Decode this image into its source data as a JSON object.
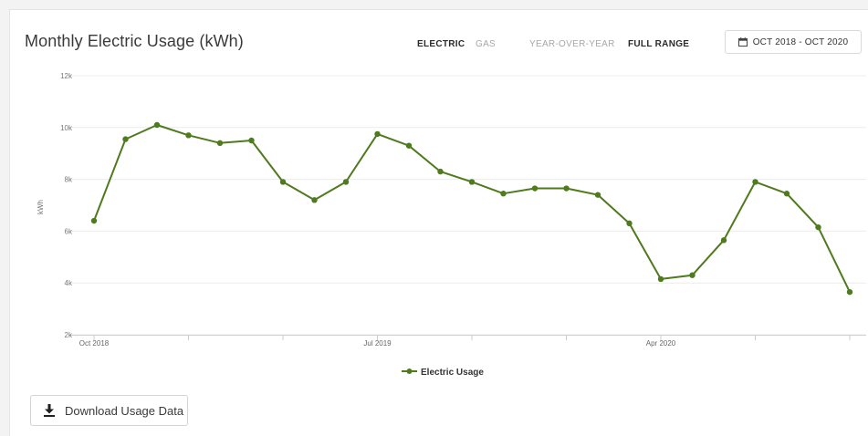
{
  "header": {
    "title": "Monthly Electric Usage (kWh)",
    "fuel_tabs": [
      {
        "label": "ELECTRIC",
        "active": true
      },
      {
        "label": "GAS",
        "active": false
      }
    ],
    "range_tabs": [
      {
        "label": "YEAR-OVER-YEAR",
        "active": false
      },
      {
        "label": "FULL RANGE",
        "active": true
      }
    ],
    "date_range": "OCT 2018 - OCT 2020",
    "date_icon": "calendar-icon"
  },
  "footer": {
    "download_label": "Download Usage Data",
    "download_icon": "download-icon"
  },
  "chart_data": {
    "type": "line",
    "title": "Monthly Electric Usage (kWh)",
    "xlabel": "",
    "ylabel": "kWh",
    "ylim": [
      2000,
      12000
    ],
    "yticks": [
      2000,
      4000,
      6000,
      8000,
      10000,
      12000
    ],
    "ytick_labels": [
      "2k",
      "4k",
      "6k",
      "8k",
      "10k",
      "12k"
    ],
    "xtick_labels": [
      {
        "index": 0,
        "label": "Oct 2018"
      },
      {
        "index": 9,
        "label": "Jul 2019"
      },
      {
        "index": 18,
        "label": "Apr 2020"
      }
    ],
    "grid": true,
    "legend": "bottom-center",
    "line_color": "#4f7a1e",
    "series": [
      {
        "name": "Electric Usage",
        "x": [
          "Oct 2018",
          "Nov 2018",
          "Dec 2018",
          "Jan 2019",
          "Feb 2019",
          "Mar 2019",
          "Apr 2019",
          "May 2019",
          "Jun 2019",
          "Jul 2019",
          "Aug 2019",
          "Sep 2019",
          "Oct 2019",
          "Nov 2019",
          "Dec 2019",
          "Jan 2020",
          "Feb 2020",
          "Mar 2020",
          "Apr 2020",
          "May 2020",
          "Jun 2020",
          "Jul 2020",
          "Aug 2020",
          "Sep 2020",
          "Oct 2020"
        ],
        "values": [
          6400,
          9550,
          10100,
          9700,
          9400,
          9500,
          7900,
          7200,
          7900,
          9750,
          9300,
          8300,
          7900,
          7450,
          7650,
          7650,
          7400,
          6300,
          4150,
          4300,
          5650,
          7900,
          7450,
          6150,
          3650
        ]
      }
    ]
  }
}
